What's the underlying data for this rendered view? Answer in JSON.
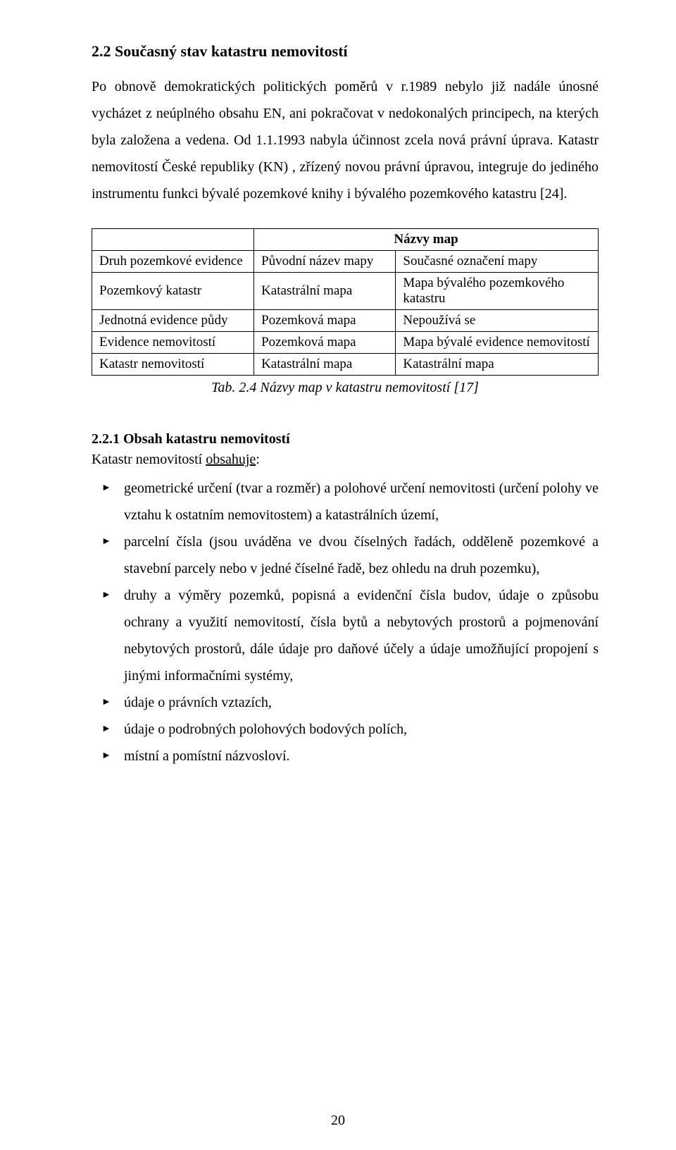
{
  "section": {
    "heading": "2.2 Současný stav katastru nemovitostí",
    "paragraph": "Po obnově demokratických politických poměrů v r.1989 nebylo již nadále únosné vycházet z neúplného obsahu EN, ani pokračovat v nedokonalých principech, na kterých byla založena a vedena. Od 1.1.1993 nabyla účinnost zcela nová právní úprava. Katastr nemovitostí České republiky (KN) , zřízený novou právní úpravou, integruje do jediného instrumentu funkci bývalé pozemkové knihy i bývalého pozemkového katastru [24]."
  },
  "table": {
    "title": "Názvy map",
    "title_fontsize": 19,
    "border_color": "#000000",
    "font_family": "Times New Roman",
    "header": [
      "Druh pozemkové evidence",
      "Původní název mapy",
      "Současné označení mapy"
    ],
    "rows": [
      [
        "Pozemkový katastr",
        "Katastrální mapa",
        "Mapa bývalého pozemkového katastru"
      ],
      [
        "Jednotná evidence půdy",
        "Pozemková mapa",
        "Nepoužívá se"
      ],
      [
        "Evidence nemovitostí",
        "Pozemková mapa",
        "Mapa bývalé evidence nemovitostí"
      ],
      [
        "Katastr nemovitostí",
        "Katastrální mapa",
        "Katastrální mapa"
      ]
    ],
    "col_widths_pct": [
      32,
      28,
      40
    ],
    "caption": "Tab. 2.4 Názvy map v katastru nemovitostí [17]"
  },
  "subsection": {
    "heading": "2.2.1 Obsah katastru nemovitostí",
    "intro_plain": "Katastr nemovitostí ",
    "intro_underlined": "obsahuje",
    "intro_suffix": ":",
    "bullets": [
      "geometrické určení (tvar a rozměr) a polohové určení nemovitosti (určení polohy ve vztahu k ostatním nemovitostem) a katastrálních území,",
      "parcelní čísla (jsou uváděna ve dvou číselných řadách, odděleně pozemkové a stavební parcely nebo v jedné číselné řadě, bez ohledu na druh pozemku),",
      "druhy a výměry pozemků, popisná a evidenční čísla budov, údaje o způsobu ochrany a využití nemovitostí, čísla bytů a nebytových prostorů a pojmenování nebytových prostorů, dále údaje pro daňové účely a údaje umožňující propojení s jinými informačními systémy,",
      "údaje o právních vztazích,",
      "údaje o podrobných polohových bodových polích,",
      "místní a pomístní názvosloví."
    ]
  },
  "page_number": "20",
  "colors": {
    "text": "#000000",
    "background": "#ffffff",
    "border": "#000000"
  }
}
